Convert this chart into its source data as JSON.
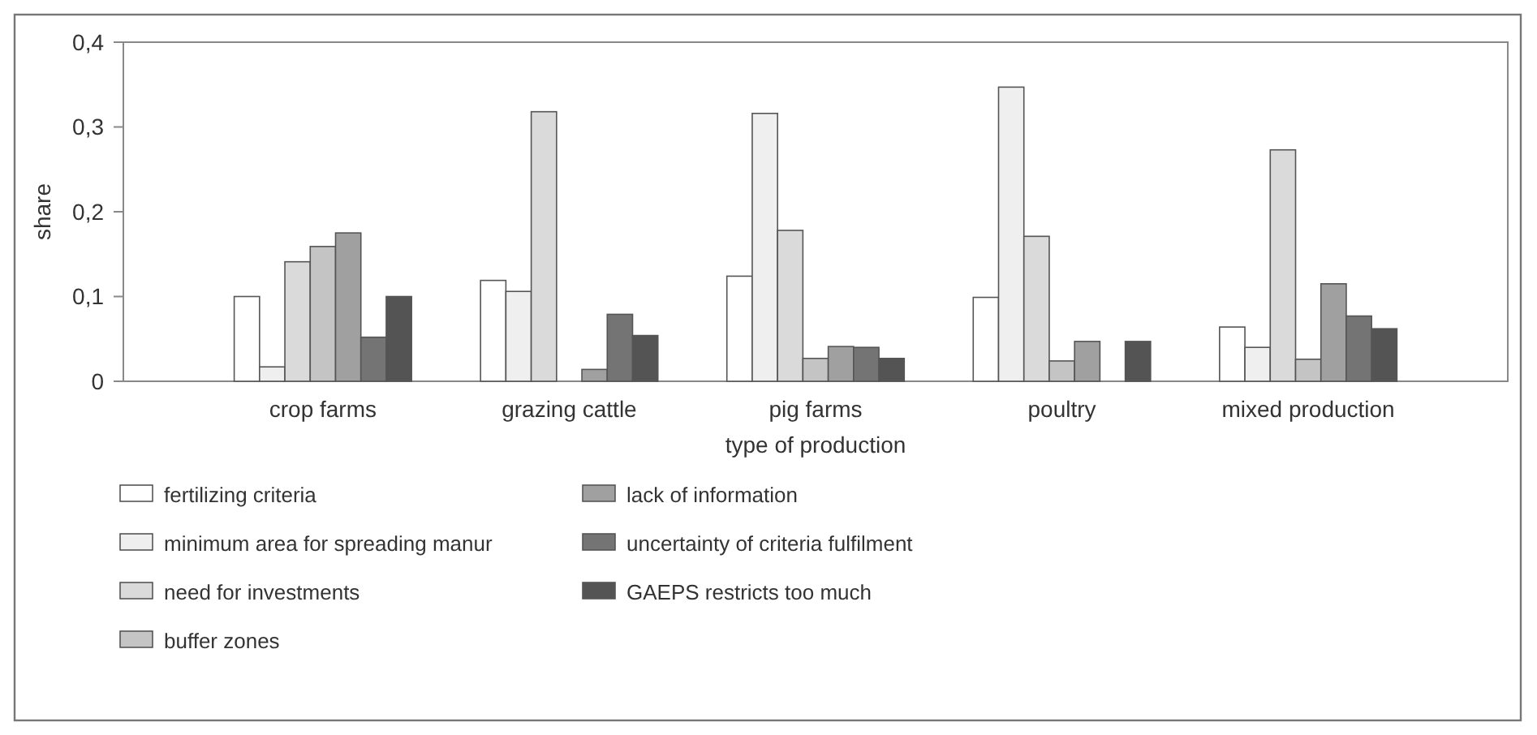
{
  "chart_data": {
    "type": "bar",
    "xlabel": "type of production",
    "ylabel": "share",
    "categories": [
      "crop farms",
      "grazing cattle",
      "pig farms",
      "poultry",
      "mixed production"
    ],
    "series": [
      {
        "name": "fertilizing criteria",
        "color": "#ffffff",
        "values": [
          0.1,
          0.119,
          0.124,
          0.099,
          0.064
        ]
      },
      {
        "name": "minimum area for spreading manur",
        "color": "#efefef",
        "values": [
          0.017,
          0.106,
          0.316,
          0.347,
          0.04
        ]
      },
      {
        "name": "need for investments",
        "color": "#dadada",
        "values": [
          0.141,
          0.318,
          0.178,
          0.171,
          0.273
        ]
      },
      {
        "name": "buffer zones",
        "color": "#c4c4c4",
        "values": [
          0.159,
          0,
          0.027,
          0.024,
          0.026
        ]
      },
      {
        "name": "lack of information",
        "color": "#a0a0a0",
        "values": [
          0.175,
          0.014,
          0.041,
          0.047,
          0.115
        ]
      },
      {
        "name": "uncertainty of criteria fulfilment",
        "color": "#747474",
        "values": [
          0.052,
          0.079,
          0.04,
          0,
          0.077
        ]
      },
      {
        "name": "GAEPS restricts too much",
        "color": "#545454",
        "values": [
          0.1,
          0.054,
          0.027,
          0.047,
          0.062
        ]
      }
    ],
    "ylim": [
      0,
      0.4
    ],
    "yticks": [
      {
        "value": 0,
        "label": "0"
      },
      {
        "value": 0.1,
        "label": "0,1"
      },
      {
        "value": 0.2,
        "label": "0,2"
      },
      {
        "value": 0.3,
        "label": "0,3"
      },
      {
        "value": 0.4,
        "label": "0,4"
      }
    ],
    "legend": "bottom"
  }
}
